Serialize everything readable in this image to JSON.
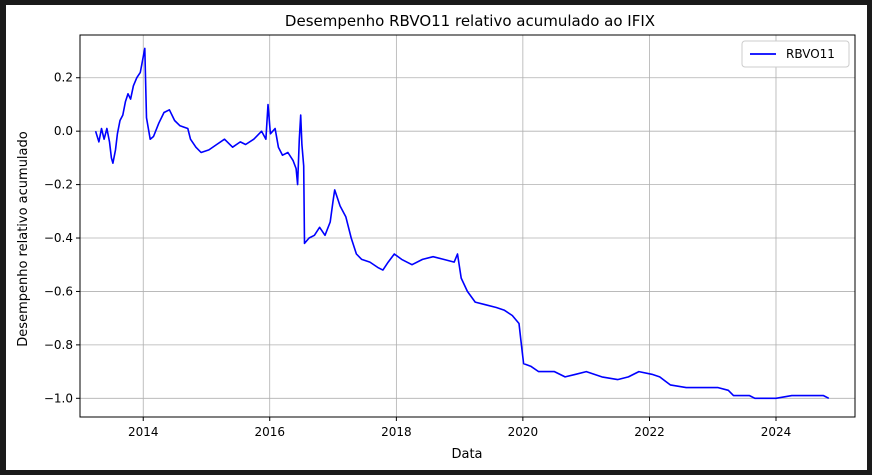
{
  "chart_data": {
    "type": "line",
    "title": "Desempenho RBVO11 relativo acumulado ao IFIX",
    "xlabel": "Data",
    "ylabel": "Desempenho relativo acumulado",
    "xlim": [
      "2013-01-01",
      "2025-04-01"
    ],
    "ylim": [
      -1.07,
      0.36
    ],
    "xticks": [
      {
        "value": "2014-01-01",
        "label": "2014"
      },
      {
        "value": "2016-01-01",
        "label": "2016"
      },
      {
        "value": "2018-01-01",
        "label": "2018"
      },
      {
        "value": "2020-01-01",
        "label": "2020"
      },
      {
        "value": "2022-01-01",
        "label": "2022"
      },
      {
        "value": "2024-01-01",
        "label": "2024"
      }
    ],
    "yticks": [
      {
        "value": 0.2,
        "label": "0.2"
      },
      {
        "value": 0.0,
        "label": "0.0"
      },
      {
        "value": -0.2,
        "label": "−0.2"
      },
      {
        "value": -0.4,
        "label": "−0.4"
      },
      {
        "value": -0.6,
        "label": "−0.6"
      },
      {
        "value": -0.8,
        "label": "−0.8"
      },
      {
        "value": -1.0,
        "label": "−1.0"
      }
    ],
    "grid": true,
    "legend_position": "top-right",
    "series": [
      {
        "name": "RBVO11",
        "color": "#0000ff",
        "points": [
          [
            "2013-04-01",
            0.0
          ],
          [
            "2013-04-20",
            -0.04
          ],
          [
            "2013-05-05",
            0.01
          ],
          [
            "2013-05-20",
            -0.03
          ],
          [
            "2013-06-05",
            0.01
          ],
          [
            "2013-06-20",
            -0.04
          ],
          [
            "2013-07-01",
            -0.1
          ],
          [
            "2013-07-10",
            -0.12
          ],
          [
            "2013-07-25",
            -0.07
          ],
          [
            "2013-08-05",
            -0.01
          ],
          [
            "2013-08-20",
            0.04
          ],
          [
            "2013-09-05",
            0.06
          ],
          [
            "2013-09-20",
            0.11
          ],
          [
            "2013-10-05",
            0.14
          ],
          [
            "2013-10-20",
            0.12
          ],
          [
            "2013-11-05",
            0.17
          ],
          [
            "2013-11-25",
            0.2
          ],
          [
            "2013-12-15",
            0.22
          ],
          [
            "2014-01-10",
            0.31
          ],
          [
            "2014-01-20",
            0.05
          ],
          [
            "2014-02-10",
            -0.03
          ],
          [
            "2014-03-01",
            -0.02
          ],
          [
            "2014-04-01",
            0.03
          ],
          [
            "2014-05-01",
            0.07
          ],
          [
            "2014-06-01",
            0.08
          ],
          [
            "2014-07-01",
            0.04
          ],
          [
            "2014-08-01",
            0.02
          ],
          [
            "2014-09-15",
            0.01
          ],
          [
            "2014-10-01",
            -0.03
          ],
          [
            "2014-11-01",
            -0.06
          ],
          [
            "2014-12-01",
            -0.08
          ],
          [
            "2015-01-15",
            -0.07
          ],
          [
            "2015-03-01",
            -0.05
          ],
          [
            "2015-04-15",
            -0.03
          ],
          [
            "2015-06-01",
            -0.06
          ],
          [
            "2015-07-15",
            -0.04
          ],
          [
            "2015-08-15",
            -0.05
          ],
          [
            "2015-10-01",
            -0.03
          ],
          [
            "2015-11-15",
            0.0
          ],
          [
            "2015-12-10",
            -0.03
          ],
          [
            "2015-12-22",
            0.1
          ],
          [
            "2016-01-05",
            -0.01
          ],
          [
            "2016-02-01",
            0.01
          ],
          [
            "2016-02-20",
            -0.06
          ],
          [
            "2016-03-15",
            -0.09
          ],
          [
            "2016-04-15",
            -0.08
          ],
          [
            "2016-05-15",
            -0.11
          ],
          [
            "2016-06-01",
            -0.14
          ],
          [
            "2016-06-10",
            -0.2
          ],
          [
            "2016-06-20",
            -0.03
          ],
          [
            "2016-06-28",
            0.06
          ],
          [
            "2016-07-05",
            -0.05
          ],
          [
            "2016-07-15",
            -0.13
          ],
          [
            "2016-07-20",
            -0.42
          ],
          [
            "2016-08-15",
            -0.4
          ],
          [
            "2016-09-15",
            -0.39
          ],
          [
            "2016-10-15",
            -0.36
          ],
          [
            "2016-11-15",
            -0.39
          ],
          [
            "2016-12-15",
            -0.34
          ],
          [
            "2017-01-01",
            -0.26
          ],
          [
            "2017-01-10",
            -0.22
          ],
          [
            "2017-02-10",
            -0.28
          ],
          [
            "2017-03-15",
            -0.32
          ],
          [
            "2017-04-15",
            -0.4
          ],
          [
            "2017-05-15",
            -0.46
          ],
          [
            "2017-06-15",
            -0.48
          ],
          [
            "2017-08-01",
            -0.49
          ],
          [
            "2017-09-15",
            -0.51
          ],
          [
            "2017-10-15",
            -0.52
          ],
          [
            "2017-11-15",
            -0.49
          ],
          [
            "2017-12-20",
            -0.46
          ],
          [
            "2018-02-01",
            -0.48
          ],
          [
            "2018-04-01",
            -0.5
          ],
          [
            "2018-06-01",
            -0.48
          ],
          [
            "2018-08-01",
            -0.47
          ],
          [
            "2018-10-01",
            -0.48
          ],
          [
            "2018-12-01",
            -0.49
          ],
          [
            "2018-12-20",
            -0.46
          ],
          [
            "2019-01-10",
            -0.55
          ],
          [
            "2019-02-15",
            -0.6
          ],
          [
            "2019-04-01",
            -0.64
          ],
          [
            "2019-06-01",
            -0.65
          ],
          [
            "2019-08-01",
            -0.66
          ],
          [
            "2019-09-15",
            -0.67
          ],
          [
            "2019-11-01",
            -0.69
          ],
          [
            "2019-12-10",
            -0.72
          ],
          [
            "2019-12-20",
            -0.78
          ],
          [
            "2020-01-05",
            -0.87
          ],
          [
            "2020-02-15",
            -0.88
          ],
          [
            "2020-04-01",
            -0.9
          ],
          [
            "2020-07-01",
            -0.9
          ],
          [
            "2020-09-01",
            -0.92
          ],
          [
            "2020-11-01",
            -0.91
          ],
          [
            "2021-01-01",
            -0.9
          ],
          [
            "2021-04-01",
            -0.92
          ],
          [
            "2021-07-01",
            -0.93
          ],
          [
            "2021-09-01",
            -0.92
          ],
          [
            "2021-11-01",
            -0.9
          ],
          [
            "2022-01-15",
            -0.91
          ],
          [
            "2022-03-01",
            -0.92
          ],
          [
            "2022-05-01",
            -0.95
          ],
          [
            "2022-08-01",
            -0.96
          ],
          [
            "2022-11-01",
            -0.96
          ],
          [
            "2023-02-01",
            -0.96
          ],
          [
            "2023-04-01",
            -0.97
          ],
          [
            "2023-05-01",
            -0.99
          ],
          [
            "2023-08-01",
            -0.99
          ],
          [
            "2023-09-01",
            -1.0
          ],
          [
            "2024-01-01",
            -1.0
          ],
          [
            "2024-04-01",
            -0.99
          ],
          [
            "2024-07-01",
            -0.99
          ],
          [
            "2024-10-01",
            -0.99
          ],
          [
            "2024-11-01",
            -1.0
          ]
        ]
      }
    ]
  }
}
